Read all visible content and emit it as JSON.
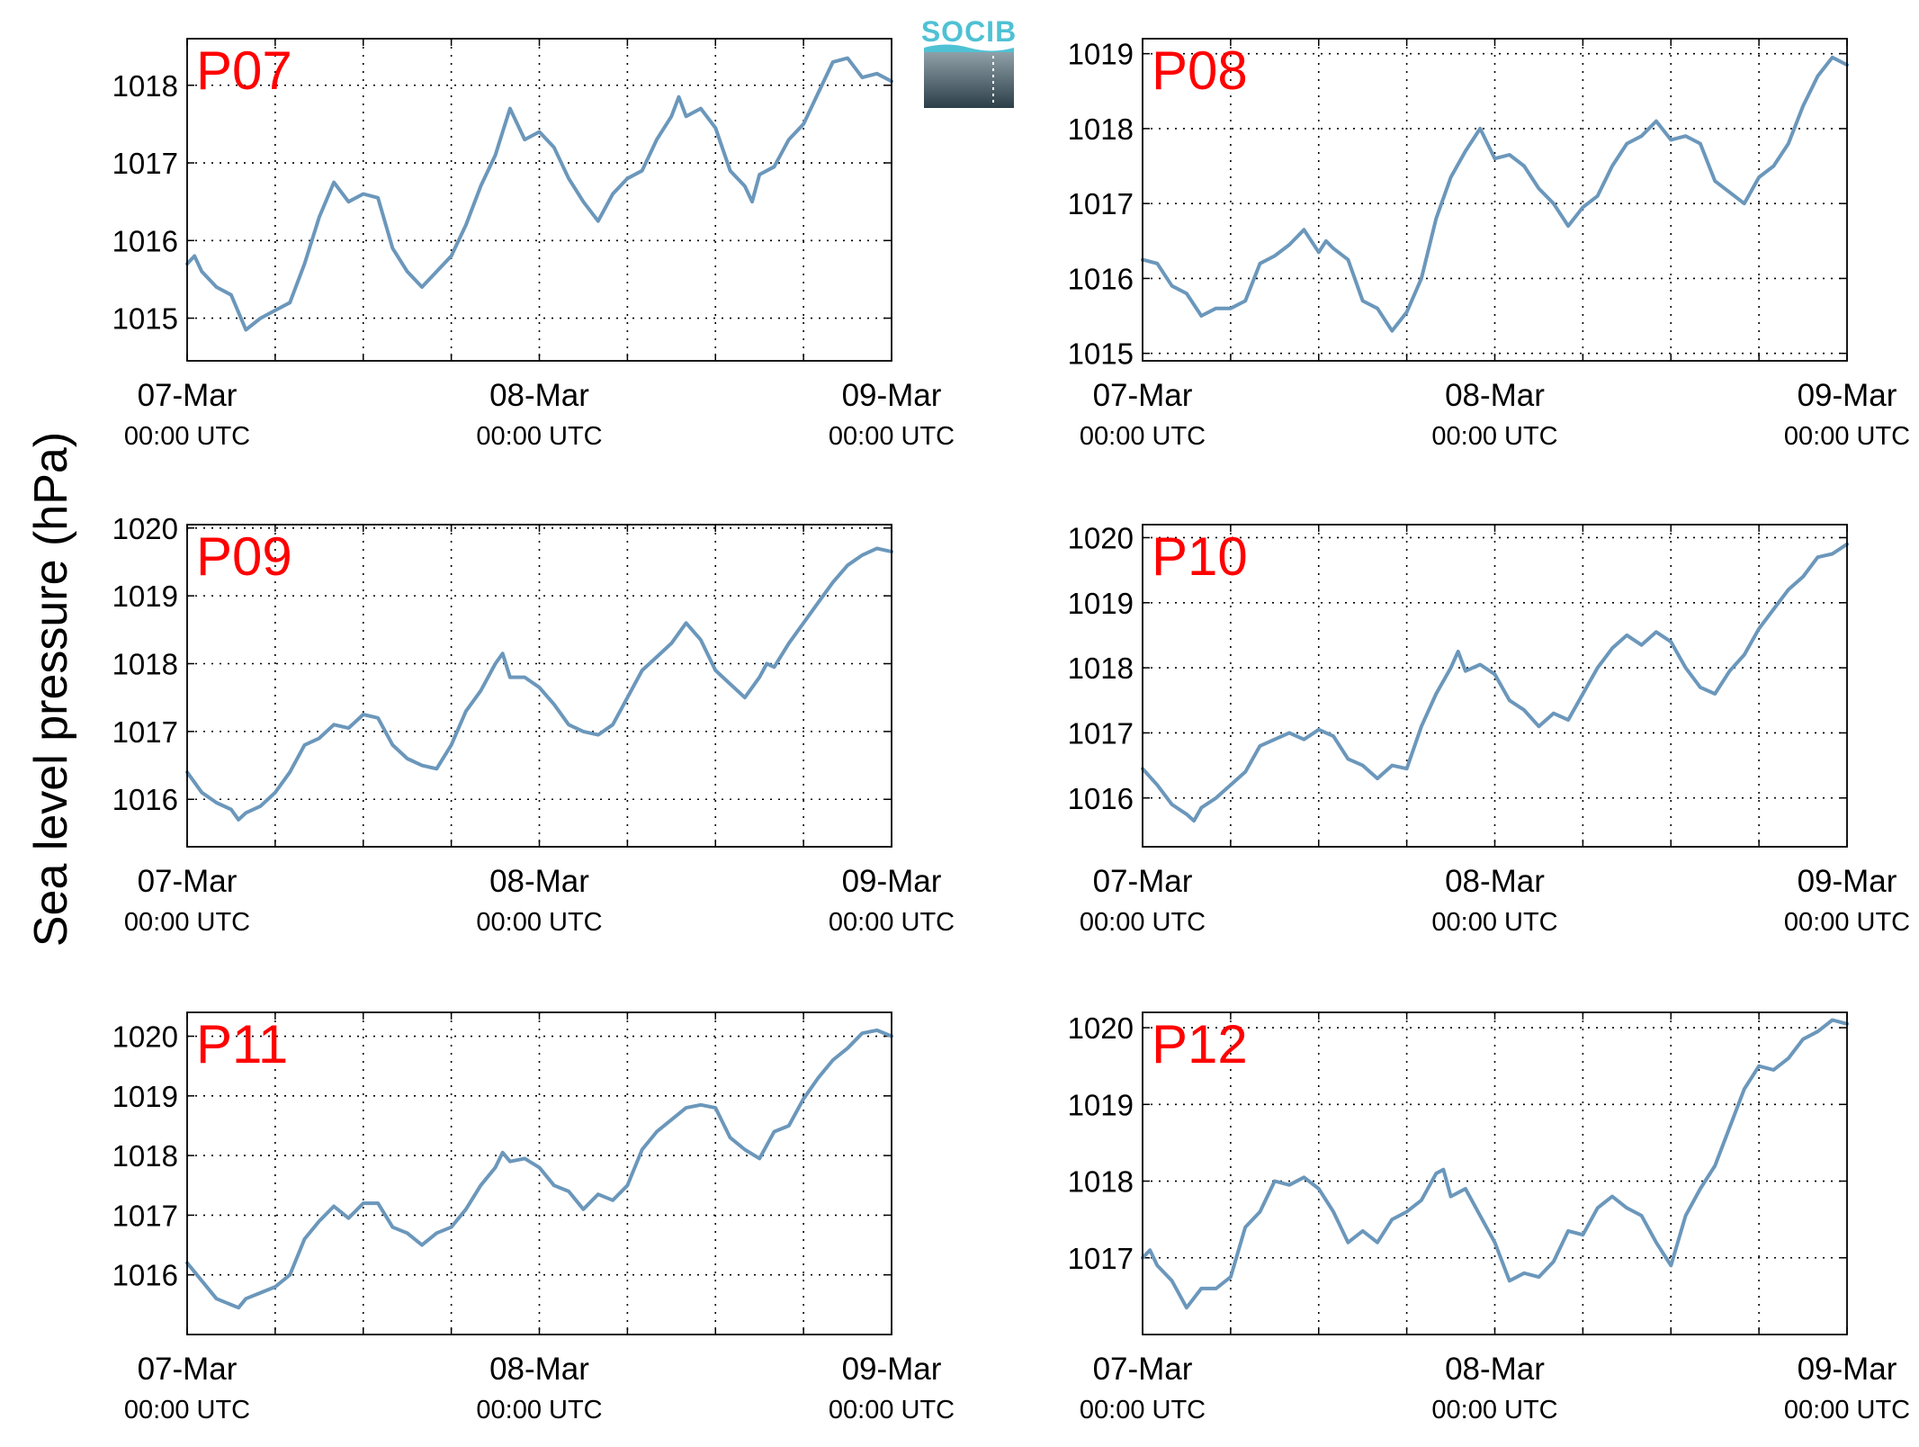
{
  "figure": {
    "ylabel": "Sea level pressure (hPa)",
    "logo_text": "SOCIB",
    "colors": {
      "line": "#6b97bb",
      "title": "#ff0000",
      "logo_top": "#4fc1d4",
      "logo_grad_top": "#8fa0a8",
      "logo_grad_bottom": "#2c3e48"
    }
  },
  "chart_data": [
    {
      "type": "line",
      "title": "P07",
      "grid": true,
      "x_ticks": [
        {
          "date": "07-Mar",
          "time": "00:00 UTC"
        },
        {
          "date": "08-Mar",
          "time": "00:00 UTC"
        },
        {
          "date": "09-Mar",
          "time": "00:00 UTC"
        }
      ],
      "xlim": [
        0,
        48
      ],
      "ylim": [
        1014.45,
        1018.6
      ],
      "yticks": [
        1015,
        1016,
        1017,
        1018
      ],
      "x": [
        0,
        0.5,
        1,
        2,
        3,
        4,
        5,
        6,
        7,
        8,
        9,
        10,
        11,
        12,
        13,
        14,
        15,
        16,
        17,
        18,
        19,
        20,
        21,
        21.5,
        22,
        23,
        24,
        25,
        26,
        27,
        28,
        29,
        30,
        31,
        32,
        33,
        33.5,
        34,
        35,
        36,
        37,
        38,
        38.5,
        39,
        40,
        41,
        42,
        43,
        44,
        45,
        46,
        47,
        48
      ],
      "y": [
        1015.7,
        1015.8,
        1015.6,
        1015.4,
        1015.3,
        1014.85,
        1015.0,
        1015.1,
        1015.2,
        1015.7,
        1016.3,
        1016.75,
        1016.5,
        1016.6,
        1016.55,
        1015.9,
        1015.6,
        1015.4,
        1015.6,
        1015.8,
        1016.2,
        1016.7,
        1017.1,
        1017.4,
        1017.7,
        1017.3,
        1017.4,
        1017.2,
        1016.8,
        1016.5,
        1016.25,
        1016.6,
        1016.8,
        1016.9,
        1017.3,
        1017.6,
        1017.85,
        1017.6,
        1017.7,
        1017.45,
        1016.9,
        1016.7,
        1016.5,
        1016.85,
        1016.95,
        1017.3,
        1017.5,
        1017.9,
        1018.3,
        1018.35,
        1018.1,
        1018.15,
        1018.05
      ]
    },
    {
      "type": "line",
      "title": "P08",
      "grid": true,
      "x_ticks": [
        {
          "date": "07-Mar",
          "time": "00:00 UTC"
        },
        {
          "date": "08-Mar",
          "time": "00:00 UTC"
        },
        {
          "date": "09-Mar",
          "time": "00:00 UTC"
        }
      ],
      "xlim": [
        0,
        48
      ],
      "ylim": [
        1014.9,
        1019.2
      ],
      "yticks": [
        1015,
        1016,
        1017,
        1018,
        1019
      ],
      "x": [
        0,
        1,
        2,
        3,
        4,
        5,
        6,
        7,
        8,
        9,
        10,
        11,
        12,
        12.5,
        13,
        14,
        15,
        16,
        17,
        18,
        19,
        20,
        21,
        22,
        23,
        24,
        25,
        26,
        27,
        28,
        29,
        30,
        31,
        32,
        33,
        34,
        35,
        36,
        37,
        38,
        39,
        40,
        41,
        42,
        43,
        44,
        45,
        46,
        47,
        48
      ],
      "y": [
        1016.25,
        1016.2,
        1015.9,
        1015.8,
        1015.5,
        1015.6,
        1015.6,
        1015.7,
        1016.2,
        1016.3,
        1016.45,
        1016.65,
        1016.35,
        1016.5,
        1016.4,
        1016.25,
        1015.7,
        1015.6,
        1015.3,
        1015.55,
        1016.0,
        1016.8,
        1017.35,
        1017.7,
        1018.0,
        1017.6,
        1017.65,
        1017.5,
        1017.2,
        1017.0,
        1016.7,
        1016.95,
        1017.1,
        1017.5,
        1017.8,
        1017.9,
        1018.1,
        1017.85,
        1017.9,
        1017.8,
        1017.3,
        1017.15,
        1017.0,
        1017.35,
        1017.5,
        1017.8,
        1018.3,
        1018.7,
        1018.95,
        1018.85
      ]
    },
    {
      "type": "line",
      "title": "P09",
      "grid": true,
      "x_ticks": [
        {
          "date": "07-Mar",
          "time": "00:00 UTC"
        },
        {
          "date": "08-Mar",
          "time": "00:00 UTC"
        },
        {
          "date": "09-Mar",
          "time": "00:00 UTC"
        }
      ],
      "xlim": [
        0,
        48
      ],
      "ylim": [
        1015.3,
        1020.05
      ],
      "yticks": [
        1016,
        1017,
        1018,
        1019,
        1020
      ],
      "x": [
        0,
        1,
        2,
        3,
        3.5,
        4,
        5,
        6,
        7,
        8,
        9,
        10,
        11,
        12,
        13,
        14,
        15,
        16,
        17,
        18,
        19,
        20,
        21,
        21.5,
        22,
        23,
        24,
        25,
        26,
        27,
        28,
        29,
        30,
        31,
        32,
        33,
        34,
        35,
        36,
        37,
        38,
        39,
        39.5,
        40,
        41,
        42,
        43,
        44,
        45,
        46,
        47,
        48
      ],
      "y": [
        1016.4,
        1016.1,
        1015.95,
        1015.85,
        1015.7,
        1015.8,
        1015.9,
        1016.1,
        1016.4,
        1016.8,
        1016.9,
        1017.1,
        1017.05,
        1017.25,
        1017.2,
        1016.8,
        1016.6,
        1016.5,
        1016.45,
        1016.8,
        1017.3,
        1017.6,
        1018.0,
        1018.15,
        1017.8,
        1017.8,
        1017.65,
        1017.4,
        1017.1,
        1017.0,
        1016.95,
        1017.1,
        1017.5,
        1017.9,
        1018.1,
        1018.3,
        1018.6,
        1018.35,
        1017.9,
        1017.7,
        1017.5,
        1017.8,
        1018.0,
        1017.95,
        1018.3,
        1018.6,
        1018.9,
        1019.2,
        1019.45,
        1019.6,
        1019.7,
        1019.65
      ]
    },
    {
      "type": "line",
      "title": "P10",
      "grid": true,
      "x_ticks": [
        {
          "date": "07-Mar",
          "time": "00:00 UTC"
        },
        {
          "date": "08-Mar",
          "time": "00:00 UTC"
        },
        {
          "date": "09-Mar",
          "time": "00:00 UTC"
        }
      ],
      "xlim": [
        0,
        48
      ],
      "ylim": [
        1015.25,
        1020.2
      ],
      "yticks": [
        1016,
        1017,
        1018,
        1019,
        1020
      ],
      "x": [
        0,
        1,
        2,
        3,
        3.5,
        4,
        5,
        6,
        7,
        8,
        9,
        10,
        11,
        12,
        13,
        14,
        15,
        16,
        17,
        18,
        19,
        20,
        21,
        21.5,
        22,
        23,
        24,
        25,
        26,
        27,
        28,
        29,
        30,
        31,
        32,
        33,
        34,
        35,
        36,
        37,
        38,
        39,
        40,
        41,
        42,
        43,
        44,
        45,
        46,
        47,
        48
      ],
      "y": [
        1016.45,
        1016.2,
        1015.9,
        1015.75,
        1015.65,
        1015.85,
        1016.0,
        1016.2,
        1016.4,
        1016.8,
        1016.9,
        1017.0,
        1016.9,
        1017.05,
        1016.95,
        1016.6,
        1016.5,
        1016.3,
        1016.5,
        1016.45,
        1017.1,
        1017.6,
        1018.0,
        1018.25,
        1017.95,
        1018.05,
        1017.9,
        1017.5,
        1017.35,
        1017.1,
        1017.3,
        1017.2,
        1017.6,
        1018.0,
        1018.3,
        1018.5,
        1018.35,
        1018.55,
        1018.4,
        1018.0,
        1017.7,
        1017.6,
        1017.95,
        1018.2,
        1018.6,
        1018.9,
        1019.2,
        1019.4,
        1019.7,
        1019.75,
        1019.9
      ]
    },
    {
      "type": "line",
      "title": "P11",
      "grid": true,
      "x_ticks": [
        {
          "date": "07-Mar",
          "time": "00:00 UTC"
        },
        {
          "date": "08-Mar",
          "time": "00:00 UTC"
        },
        {
          "date": "09-Mar",
          "time": "00:00 UTC"
        }
      ],
      "xlim": [
        0,
        48
      ],
      "ylim": [
        1015.0,
        1020.4
      ],
      "yticks": [
        1016,
        1017,
        1018,
        1019,
        1020
      ],
      "x": [
        0,
        1,
        2,
        3,
        3.5,
        4,
        5,
        6,
        7,
        8,
        9,
        10,
        11,
        12,
        13,
        14,
        15,
        16,
        17,
        18,
        19,
        20,
        21,
        21.5,
        22,
        23,
        24,
        25,
        26,
        27,
        28,
        29,
        30,
        31,
        32,
        33,
        34,
        35,
        36,
        37,
        38,
        39,
        40,
        41,
        42,
        43,
        44,
        45,
        46,
        47,
        48
      ],
      "y": [
        1016.2,
        1015.9,
        1015.6,
        1015.5,
        1015.45,
        1015.6,
        1015.7,
        1015.8,
        1016.0,
        1016.6,
        1016.9,
        1017.15,
        1016.95,
        1017.2,
        1017.2,
        1016.8,
        1016.7,
        1016.5,
        1016.7,
        1016.8,
        1017.1,
        1017.5,
        1017.8,
        1018.05,
        1017.9,
        1017.95,
        1017.8,
        1017.5,
        1017.4,
        1017.1,
        1017.35,
        1017.25,
        1017.5,
        1018.1,
        1018.4,
        1018.6,
        1018.8,
        1018.85,
        1018.8,
        1018.3,
        1018.1,
        1017.95,
        1018.4,
        1018.5,
        1018.95,
        1019.3,
        1019.6,
        1019.8,
        1020.05,
        1020.1,
        1020.0
      ]
    },
    {
      "type": "line",
      "title": "P12",
      "grid": true,
      "x_ticks": [
        {
          "date": "07-Mar",
          "time": "00:00 UTC"
        },
        {
          "date": "08-Mar",
          "time": "00:00 UTC"
        },
        {
          "date": "09-Mar",
          "time": "00:00 UTC"
        }
      ],
      "xlim": [
        0,
        48
      ],
      "ylim": [
        1016.0,
        1020.2
      ],
      "yticks": [
        1017,
        1018,
        1019,
        1020
      ],
      "x": [
        0,
        0.5,
        1,
        2,
        3,
        4,
        5,
        6,
        7,
        8,
        9,
        10,
        11,
        12,
        13,
        14,
        15,
        16,
        17,
        18,
        19,
        20,
        20.5,
        21,
        22,
        23,
        24,
        25,
        26,
        27,
        28,
        29,
        30,
        31,
        32,
        33,
        34,
        35,
        36,
        37,
        38,
        39,
        40,
        41,
        42,
        43,
        44,
        45,
        46,
        47,
        48
      ],
      "y": [
        1017.0,
        1017.1,
        1016.9,
        1016.7,
        1016.35,
        1016.6,
        1016.6,
        1016.75,
        1017.4,
        1017.6,
        1018.0,
        1017.95,
        1018.05,
        1017.9,
        1017.6,
        1017.2,
        1017.35,
        1017.2,
        1017.5,
        1017.6,
        1017.75,
        1018.1,
        1018.15,
        1017.8,
        1017.9,
        1017.55,
        1017.2,
        1016.7,
        1016.8,
        1016.75,
        1016.95,
        1017.35,
        1017.3,
        1017.65,
        1017.8,
        1017.65,
        1017.55,
        1017.2,
        1016.9,
        1017.55,
        1017.9,
        1018.2,
        1018.7,
        1019.2,
        1019.5,
        1019.45,
        1019.6,
        1019.85,
        1019.95,
        1020.1,
        1020.05
      ]
    }
  ]
}
